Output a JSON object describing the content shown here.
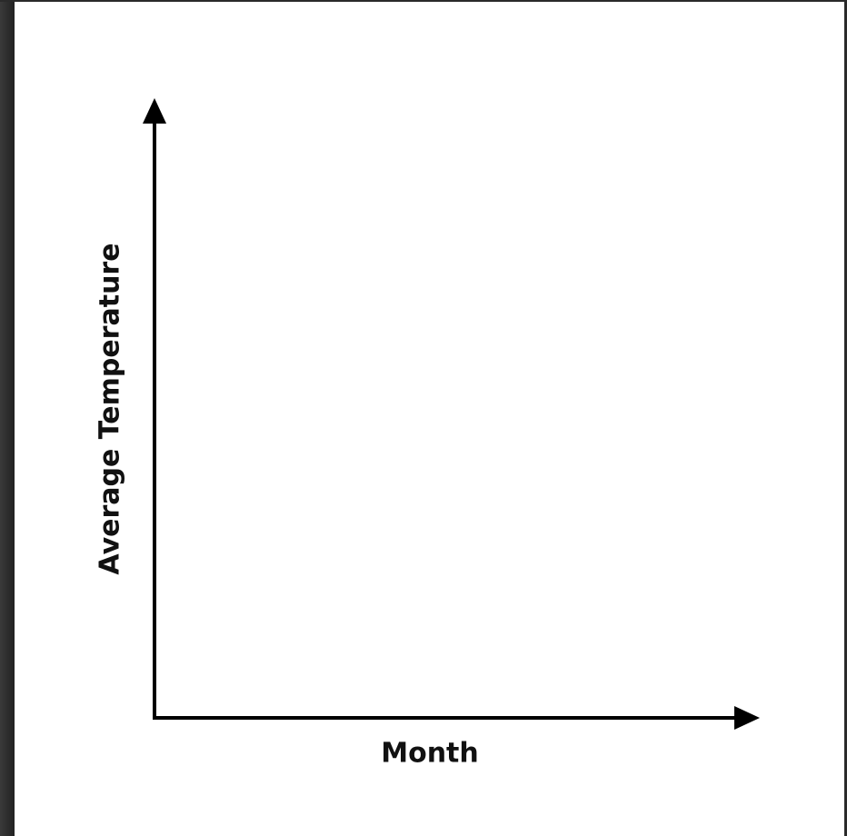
{
  "chart_data": {
    "type": "line",
    "xlabel": "Month",
    "ylabel": "Average Temperature"
  }
}
